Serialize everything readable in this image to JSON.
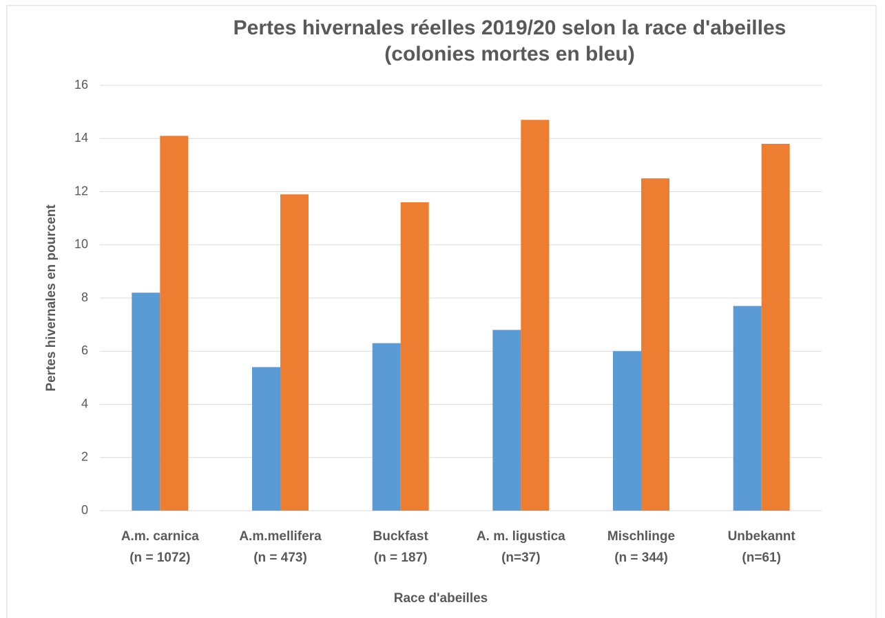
{
  "chart_data": {
    "type": "bar",
    "title": [
      "Pertes hivernales réelles 2019/20 selon la race d'abeilles",
      "(colonies mortes en bleu)"
    ],
    "x_label": "Race d'abeilles",
    "y_label": "Pertes hivernales en pourcent",
    "categories": [
      [
        "A.m. carnica",
        "(n = 1072)"
      ],
      [
        "A.m.mellifera",
        "(n = 473)"
      ],
      [
        "Buckfast",
        "(n = 187)"
      ],
      [
        "A. m. ligustica",
        "(n=37)"
      ],
      [
        "Mischlinge",
        "(n = 344)"
      ],
      [
        "Unbekannt",
        "(n=61)"
      ]
    ],
    "series": [
      {
        "color": "#5b9bd5",
        "values": [
          8.2,
          5.4,
          6.3,
          6.8,
          6.0,
          7.7
        ]
      },
      {
        "color": "#ed7d31",
        "values": [
          14.1,
          11.9,
          11.6,
          14.7,
          12.5,
          13.8
        ]
      }
    ],
    "ylim": [
      0,
      16
    ],
    "yticks": [
      0,
      2,
      4,
      6,
      8,
      10,
      12,
      14,
      16
    ],
    "grid": true
  }
}
